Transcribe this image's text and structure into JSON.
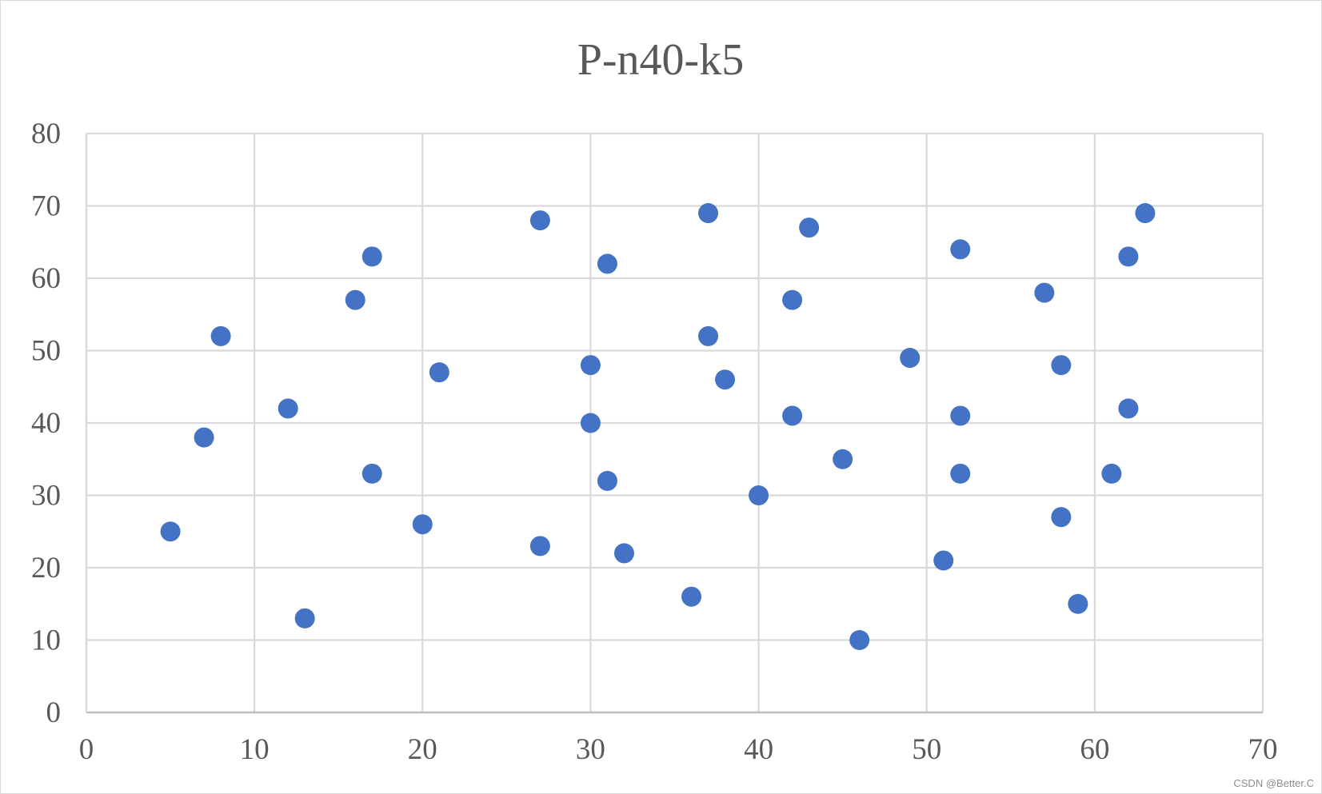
{
  "chart_data": {
    "type": "scatter",
    "title": "P-n40-k5",
    "xlabel": "",
    "ylabel": "",
    "xlim": [
      0,
      70
    ],
    "ylim": [
      0,
      80
    ],
    "xticks": [
      "0",
      "10",
      "20",
      "30",
      "40",
      "50",
      "60",
      "70"
    ],
    "yticks": [
      "0",
      "10",
      "20",
      "30",
      "40",
      "50",
      "60",
      "70",
      "80"
    ],
    "grid": true,
    "legend": "none",
    "marker_color": "#4472c4",
    "series": [
      {
        "points": [
          [
            5,
            25
          ],
          [
            7,
            38
          ],
          [
            8,
            52
          ],
          [
            12,
            42
          ],
          [
            13,
            13
          ],
          [
            16,
            57
          ],
          [
            17,
            63
          ],
          [
            17,
            33
          ],
          [
            20,
            26
          ],
          [
            21,
            47
          ],
          [
            27,
            68
          ],
          [
            27,
            23
          ],
          [
            30,
            48
          ],
          [
            30,
            40
          ],
          [
            31,
            62
          ],
          [
            31,
            32
          ],
          [
            32,
            22
          ],
          [
            36,
            16
          ],
          [
            37,
            69
          ],
          [
            37,
            52
          ],
          [
            38,
            46
          ],
          [
            40,
            30
          ],
          [
            42,
            57
          ],
          [
            42,
            41
          ],
          [
            43,
            67
          ],
          [
            45,
            35
          ],
          [
            46,
            10
          ],
          [
            49,
            49
          ],
          [
            51,
            21
          ],
          [
            52,
            64
          ],
          [
            52,
            41
          ],
          [
            52,
            33
          ],
          [
            57,
            58
          ],
          [
            58,
            48
          ],
          [
            58,
            27
          ],
          [
            59,
            15
          ],
          [
            61,
            33
          ],
          [
            62,
            63
          ],
          [
            62,
            42
          ],
          [
            63,
            69
          ]
        ]
      }
    ]
  },
  "watermark": "CSDN @Better.C"
}
